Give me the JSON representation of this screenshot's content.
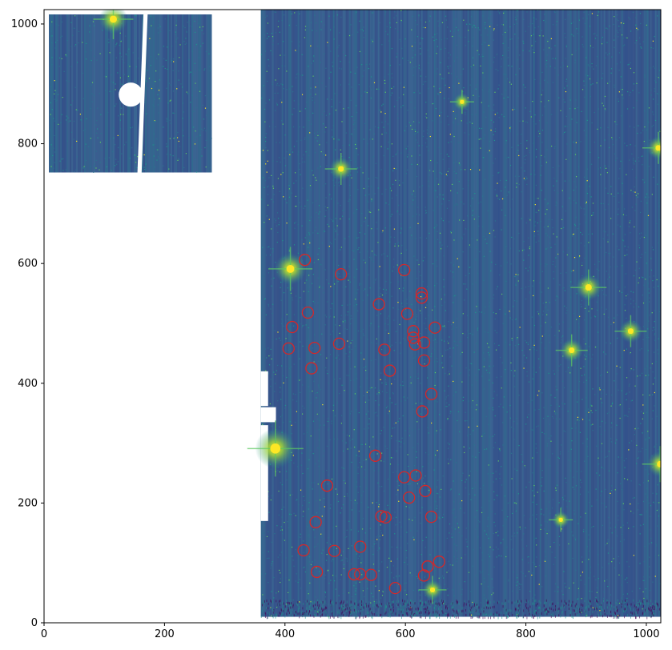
{
  "axes": {
    "xlim": [
      0,
      1024
    ],
    "ylim": [
      0,
      1024
    ],
    "x_ticks": [
      0,
      200,
      400,
      600,
      800,
      1000
    ],
    "y_ticks": [
      0,
      200,
      400,
      600,
      800,
      1000
    ],
    "x_tick_labels": [
      "0",
      "200",
      "400",
      "600",
      "800",
      "1000"
    ],
    "y_tick_labels": [
      "0",
      "200",
      "400",
      "600",
      "800",
      "1000"
    ]
  },
  "image": {
    "colormap": "viridis",
    "background_color": "#3b5a8f",
    "stripe_colors": [
      "#2f4f8a",
      "#3a6b93",
      "#2e6f8e",
      "#334f86"
    ],
    "panels": [
      {
        "name": "inset-panel",
        "x0": 8,
        "x1": 278,
        "y0": 752,
        "y1": 1016
      },
      {
        "name": "main-panel",
        "x0": 360,
        "x1": 1024,
        "y0": 10,
        "y1": 1024
      }
    ],
    "masked_regions": [
      {
        "name": "inset-gap-stripe",
        "polygon": [
          [
            155,
            752
          ],
          [
            162,
            752
          ],
          [
            172,
            1016
          ],
          [
            165,
            1016
          ]
        ]
      },
      {
        "name": "inset-gap-circle",
        "cx": 144,
        "cy": 882,
        "r": 20
      },
      {
        "name": "left-notch",
        "x0": 360,
        "x1": 385,
        "y0": 335,
        "y1": 360
      },
      {
        "name": "left-notch-lower",
        "x0": 360,
        "x1": 372,
        "y0": 170,
        "y1": 330
      },
      {
        "name": "left-notch-upper",
        "x0": 360,
        "x1": 372,
        "y0": 362,
        "y1": 420
      }
    ],
    "bright_stars": [
      {
        "x": 115,
        "y": 1008,
        "size": 10
      },
      {
        "x": 493,
        "y": 758,
        "size": 8
      },
      {
        "x": 409,
        "y": 591,
        "size": 11
      },
      {
        "x": 904,
        "y": 560,
        "size": 9
      },
      {
        "x": 974,
        "y": 487,
        "size": 8
      },
      {
        "x": 876,
        "y": 455,
        "size": 8
      },
      {
        "x": 384,
        "y": 291,
        "size": 14
      },
      {
        "x": 1023,
        "y": 265,
        "size": 9
      },
      {
        "x": 858,
        "y": 172,
        "size": 6
      },
      {
        "x": 645,
        "y": 55,
        "size": 7
      },
      {
        "x": 1020,
        "y": 793,
        "size": 8
      },
      {
        "x": 694,
        "y": 870,
        "size": 6
      }
    ],
    "marker_color": "#d62728",
    "markers": [
      {
        "x": 433,
        "y": 606
      },
      {
        "x": 493,
        "y": 582
      },
      {
        "x": 598,
        "y": 589
      },
      {
        "x": 627,
        "y": 550
      },
      {
        "x": 627,
        "y": 543
      },
      {
        "x": 556,
        "y": 532
      },
      {
        "x": 438,
        "y": 518
      },
      {
        "x": 603,
        "y": 516
      },
      {
        "x": 412,
        "y": 494
      },
      {
        "x": 649,
        "y": 493
      },
      {
        "x": 613,
        "y": 487
      },
      {
        "x": 613,
        "y": 476
      },
      {
        "x": 616,
        "y": 465
      },
      {
        "x": 631,
        "y": 468
      },
      {
        "x": 406,
        "y": 458
      },
      {
        "x": 449,
        "y": 459
      },
      {
        "x": 490,
        "y": 466
      },
      {
        "x": 565,
        "y": 456
      },
      {
        "x": 631,
        "y": 438
      },
      {
        "x": 444,
        "y": 425
      },
      {
        "x": 574,
        "y": 421
      },
      {
        "x": 643,
        "y": 382
      },
      {
        "x": 628,
        "y": 353
      },
      {
        "x": 550,
        "y": 279
      },
      {
        "x": 617,
        "y": 246
      },
      {
        "x": 598,
        "y": 243
      },
      {
        "x": 470,
        "y": 229
      },
      {
        "x": 633,
        "y": 220
      },
      {
        "x": 606,
        "y": 209
      },
      {
        "x": 560,
        "y": 178
      },
      {
        "x": 567,
        "y": 176
      },
      {
        "x": 643,
        "y": 177
      },
      {
        "x": 451,
        "y": 168
      },
      {
        "x": 525,
        "y": 127
      },
      {
        "x": 431,
        "y": 121
      },
      {
        "x": 482,
        "y": 120
      },
      {
        "x": 656,
        "y": 102
      },
      {
        "x": 637,
        "y": 94
      },
      {
        "x": 453,
        "y": 85
      },
      {
        "x": 515,
        "y": 81
      },
      {
        "x": 525,
        "y": 81
      },
      {
        "x": 543,
        "y": 80
      },
      {
        "x": 631,
        "y": 79
      },
      {
        "x": 583,
        "y": 58
      }
    ]
  }
}
